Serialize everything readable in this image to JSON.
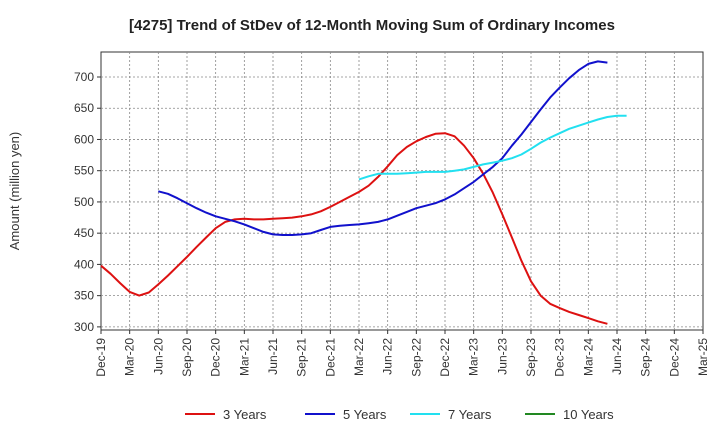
{
  "chart_data": {
    "type": "line",
    "title": "[4275]  Trend of StDev of 12-Month Moving Sum of Ordinary Incomes",
    "ylabel": "Amount (million yen)",
    "xlabel": "",
    "ylim": [
      295,
      740
    ],
    "y_ticks": [
      300,
      350,
      400,
      450,
      500,
      550,
      600,
      650,
      700
    ],
    "x_tick_labels": [
      "Dec-19",
      "Mar-20",
      "Jun-20",
      "Sep-20",
      "Dec-20",
      "Mar-21",
      "Jun-21",
      "Sep-21",
      "Dec-21",
      "Mar-22",
      "Jun-22",
      "Sep-22",
      "Dec-22",
      "Mar-23",
      "Jun-23",
      "Sep-23",
      "Dec-23",
      "Mar-24",
      "Jun-24",
      "Sep-24",
      "Dec-24",
      "Mar-25"
    ],
    "grid": true,
    "legend_position": "bottom",
    "series": [
      {
        "name": "3 Years",
        "color": "#dd1111",
        "start_index": 0,
        "values": [
          398,
          385,
          370,
          356,
          350,
          355,
          368,
          382,
          397,
          412,
          428,
          443,
          458,
          468,
          472,
          473,
          472,
          472,
          473,
          474,
          475,
          477,
          480,
          485,
          492,
          500,
          508,
          516,
          526,
          540,
          557,
          575,
          588,
          597,
          604,
          609,
          610,
          605,
          590,
          570,
          545,
          515,
          480,
          443,
          406,
          373,
          350,
          337,
          330,
          324,
          319,
          314,
          309,
          305
        ]
      },
      {
        "name": "5 Years",
        "color": "#1111cc",
        "start_index": 6,
        "values": [
          517,
          513,
          506,
          498,
          490,
          483,
          477,
          473,
          469,
          464,
          458,
          452,
          448,
          447,
          447,
          448,
          450,
          455,
          460,
          462,
          463,
          464,
          466,
          468,
          472,
          478,
          484,
          490,
          494,
          498,
          504,
          512,
          522,
          532,
          544,
          556,
          570,
          590,
          608,
          628,
          648,
          667,
          683,
          698,
          711,
          721,
          725,
          723
        ]
      },
      {
        "name": "7 Years",
        "color": "#22e0f0",
        "start_index": 27,
        "values": [
          536,
          541,
          545,
          545,
          545,
          546,
          547,
          548,
          548,
          548,
          550,
          552,
          556,
          560,
          563,
          566,
          570,
          576,
          585,
          595,
          603,
          610,
          617,
          622,
          627,
          632,
          636,
          638,
          638
        ]
      },
      {
        "name": "10 Years",
        "color": "#228822",
        "start_index": 0,
        "values": []
      }
    ]
  }
}
